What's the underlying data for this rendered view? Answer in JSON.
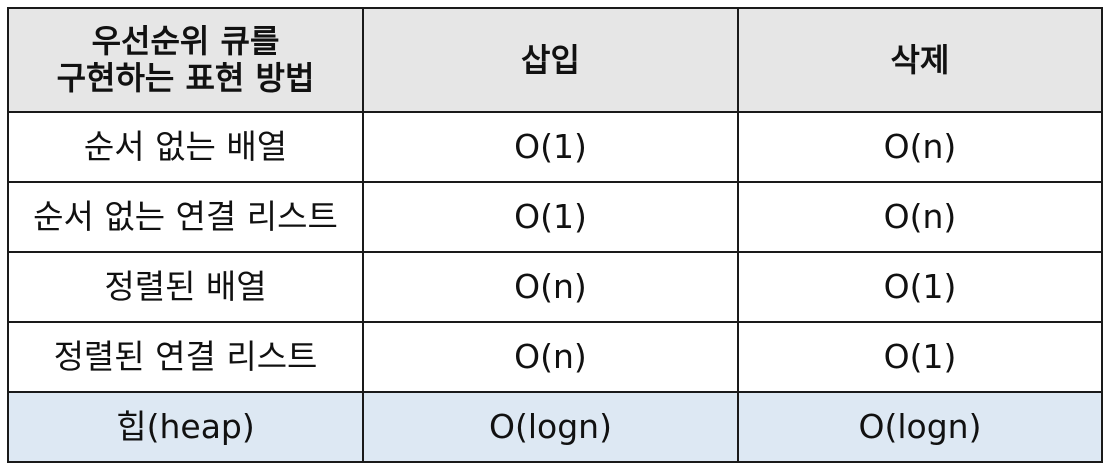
{
  "table": {
    "header": {
      "method_line1": "우선순위 큐를",
      "method_line2": "구현하는 표현 방법",
      "insert": "삽입",
      "delete": "삭제"
    },
    "rows": [
      {
        "method": "순서 없는 배열",
        "insert": "O(1)",
        "delete": "O(n)"
      },
      {
        "method": "순서 없는 연결 리스트",
        "insert": "O(1)",
        "delete": "O(n)"
      },
      {
        "method": "정렬된 배열",
        "insert": "O(n)",
        "delete": "O(1)"
      },
      {
        "method": "정렬된 연결 리스트",
        "insert": "O(n)",
        "delete": "O(1)"
      },
      {
        "method": "힙(heap)",
        "insert": "O(logn)",
        "delete": "O(logn)"
      }
    ],
    "colors": {
      "header_bg": "#e6e6e6",
      "highlight_row_bg": "#dde8f3",
      "border": "#1a1a1a"
    }
  }
}
